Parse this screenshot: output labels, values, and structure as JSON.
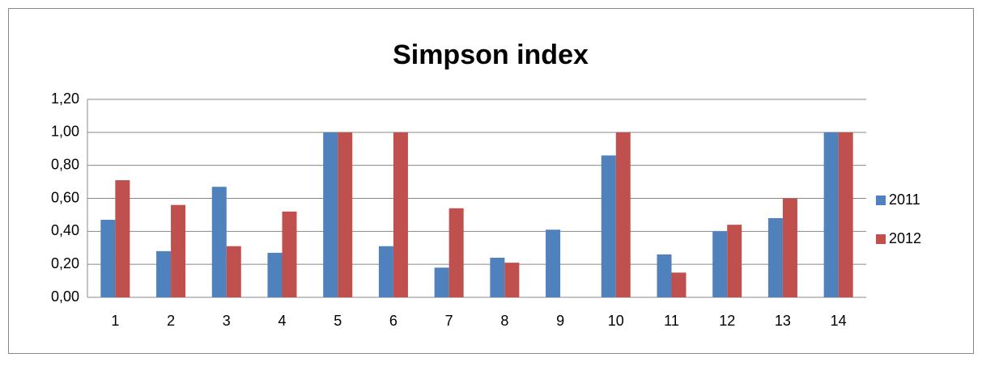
{
  "chart_data": {
    "type": "bar",
    "title": "Simpson index",
    "categories": [
      "1",
      "2",
      "3",
      "4",
      "5",
      "6",
      "7",
      "8",
      "9",
      "10",
      "11",
      "12",
      "13",
      "14"
    ],
    "series": [
      {
        "name": "2011",
        "color": "#4f81bd",
        "values": [
          0.47,
          0.28,
          0.67,
          0.27,
          1.0,
          0.31,
          0.18,
          0.24,
          0.41,
          0.86,
          0.26,
          0.4,
          0.48,
          1.0
        ]
      },
      {
        "name": "2012",
        "color": "#c0504d",
        "values": [
          0.71,
          0.56,
          0.31,
          0.52,
          1.0,
          1.0,
          0.54,
          0.21,
          0,
          1.0,
          0.15,
          0.44,
          0.6,
          1.0
        ]
      }
    ],
    "ylim": [
      0,
      1.2
    ],
    "yticks": [
      {
        "value": 0,
        "label": "0,00"
      },
      {
        "value": 0.2,
        "label": "0,20"
      },
      {
        "value": 0.4,
        "label": "0,40"
      },
      {
        "value": 0.6,
        "label": "0,60"
      },
      {
        "value": 0.8,
        "label": "0,80"
      },
      {
        "value": 1.0,
        "label": "1,00"
      },
      {
        "value": 1.2,
        "label": "1,20"
      }
    ],
    "grid": true,
    "legend": "right"
  }
}
